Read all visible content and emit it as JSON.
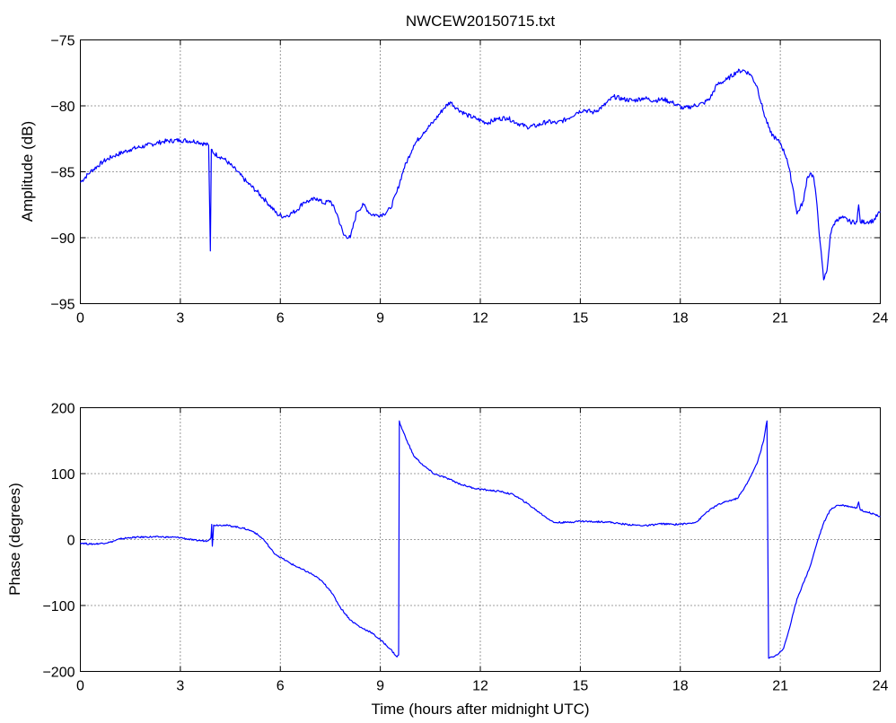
{
  "title": "NWCEW20150715.txt",
  "chart_data": [
    {
      "type": "line",
      "ylabel": "Amplitude (dB)",
      "xlabel": "",
      "xlim": [
        0,
        24
      ],
      "ylim": [
        -95,
        -75
      ],
      "xticks": [
        0,
        3,
        6,
        9,
        12,
        15,
        18,
        21,
        24
      ],
      "yticks": [
        -95,
        -90,
        -85,
        -80,
        -75
      ],
      "xtick_labels": [
        "0",
        "3",
        "6",
        "9",
        "12",
        "15",
        "18",
        "21",
        "24"
      ],
      "ytick_labels": [
        "−95",
        "−90",
        "−85",
        "−80",
        "−75"
      ],
      "grid": true,
      "color": "#0000ff",
      "series": [
        {
          "x": [
            0,
            0.3,
            0.7,
            1.0,
            1.5,
            2.0,
            2.5,
            3.0,
            3.5,
            3.85,
            3.9,
            3.93,
            3.96,
            4.0,
            4.3,
            4.6,
            5.0,
            5.3,
            5.6,
            5.9,
            6.1,
            6.3,
            6.5,
            6.7,
            6.9,
            7.1,
            7.3,
            7.5,
            7.7,
            7.9,
            8.1,
            8.3,
            8.5,
            8.7,
            8.9,
            9.1,
            9.3,
            9.5,
            9.7,
            10.0,
            10.3,
            10.6,
            10.9,
            11.1,
            11.3,
            11.6,
            11.9,
            12.2,
            12.5,
            12.8,
            13.1,
            13.4,
            13.7,
            14.0,
            14.3,
            14.6,
            14.9,
            15.1,
            15.4,
            15.7,
            16.0,
            16.3,
            16.6,
            16.9,
            17.2,
            17.5,
            17.8,
            18.1,
            18.4,
            18.7,
            18.9,
            19.1,
            19.4,
            19.7,
            19.9,
            20.1,
            20.3,
            20.5,
            20.7,
            20.9,
            21.0,
            21.2,
            21.4,
            21.5,
            21.7,
            21.8,
            21.9,
            22.0,
            22.1,
            22.2,
            22.3,
            22.4,
            22.45,
            22.5,
            22.6,
            22.7,
            22.9,
            23.1,
            23.3,
            23.35,
            23.4,
            23.6,
            23.8,
            24.0
          ],
          "y": [
            -85.8,
            -85.0,
            -84.2,
            -83.8,
            -83.3,
            -83.0,
            -82.7,
            -82.6,
            -82.7,
            -83.0,
            -91.0,
            -83.3,
            -83.4,
            -83.6,
            -84.0,
            -84.7,
            -85.8,
            -86.5,
            -87.3,
            -88.2,
            -88.4,
            -88.2,
            -87.9,
            -87.3,
            -87.2,
            -87.0,
            -87.4,
            -87.2,
            -88.2,
            -89.8,
            -90.0,
            -88.0,
            -87.5,
            -88.2,
            -88.3,
            -88.2,
            -87.8,
            -86.5,
            -84.8,
            -83.0,
            -82.0,
            -81.2,
            -80.2,
            -79.7,
            -80.2,
            -80.7,
            -81.0,
            -81.3,
            -81.0,
            -80.9,
            -81.3,
            -81.6,
            -81.5,
            -81.2,
            -81.3,
            -81.0,
            -80.5,
            -80.3,
            -80.5,
            -80.0,
            -79.3,
            -79.5,
            -79.6,
            -79.4,
            -79.6,
            -79.5,
            -79.8,
            -80.2,
            -80.0,
            -79.8,
            -79.4,
            -78.4,
            -78.0,
            -77.4,
            -77.3,
            -77.6,
            -78.5,
            -80.5,
            -82.0,
            -82.6,
            -82.8,
            -84.0,
            -86.5,
            -88.2,
            -87.2,
            -85.5,
            -85.1,
            -85.4,
            -87.5,
            -90.5,
            -93.2,
            -92.5,
            -91.2,
            -89.8,
            -89.0,
            -88.6,
            -88.5,
            -88.8,
            -88.8,
            -87.5,
            -88.8,
            -88.8,
            -88.7,
            -88.0
          ]
        }
      ]
    },
    {
      "type": "line",
      "ylabel": "Phase (degrees)",
      "xlabel": "Time (hours after midnight UTC)",
      "xlim": [
        0,
        24
      ],
      "ylim": [
        -200,
        200
      ],
      "xticks": [
        0,
        3,
        6,
        9,
        12,
        15,
        18,
        21,
        24
      ],
      "yticks": [
        -200,
        -100,
        0,
        100,
        200
      ],
      "xtick_labels": [
        "0",
        "3",
        "6",
        "9",
        "12",
        "15",
        "18",
        "21",
        "24"
      ],
      "ytick_labels": [
        "−200",
        "−100",
        "0",
        "100",
        "200"
      ],
      "grid": true,
      "color": "#0000ff",
      "series": [
        {
          "x": [
            0,
            0.3,
            0.6,
            0.9,
            1.2,
            1.5,
            2.0,
            2.5,
            3.0,
            3.4,
            3.8,
            3.92,
            3.94,
            3.96,
            4.0,
            4.3,
            4.6,
            4.9,
            5.2,
            5.5,
            5.8,
            6.0,
            6.3,
            6.6,
            6.9,
            7.2,
            7.5,
            7.8,
            8.1,
            8.4,
            8.7,
            9.0,
            9.3,
            9.5,
            9.55,
            9.57,
            9.6,
            9.8,
            10.0,
            10.3,
            10.6,
            11.0,
            11.4,
            11.8,
            12.2,
            12.6,
            13.0,
            13.4,
            13.8,
            14.2,
            14.6,
            15.0,
            15.4,
            15.8,
            16.2,
            16.6,
            17.0,
            17.4,
            17.8,
            18.2,
            18.5,
            18.8,
            19.1,
            19.4,
            19.7,
            19.9,
            20.1,
            20.3,
            20.5,
            20.6,
            20.62,
            20.65,
            20.75,
            20.9,
            21.1,
            21.3,
            21.5,
            21.7,
            21.9,
            22.1,
            22.3,
            22.5,
            22.7,
            22.9,
            23.1,
            23.3,
            23.35,
            23.4,
            23.6,
            23.8,
            24.0
          ],
          "y": [
            -5,
            -7,
            -6,
            -4,
            1,
            3,
            4,
            4,
            3,
            -1,
            -2,
            3,
            23,
            -10,
            22,
            22,
            20,
            17,
            12,
            0,
            -20,
            -27,
            -36,
            -44,
            -51,
            -61,
            -77,
            -103,
            -122,
            -133,
            -140,
            -152,
            -166,
            -178,
            -175,
            180,
            174,
            150,
            127,
            112,
            100,
            93,
            84,
            78,
            75,
            73,
            68,
            55,
            40,
            26,
            26,
            28,
            27,
            27,
            24,
            22,
            21,
            24,
            23,
            24,
            27,
            42,
            52,
            58,
            62,
            76,
            95,
            115,
            150,
            180,
            43,
            -180,
            -178,
            -175,
            -165,
            -130,
            -90,
            -65,
            -40,
            -5,
            25,
            45,
            52,
            52,
            50,
            48,
            57,
            45,
            42,
            39,
            35
          ]
        }
      ]
    }
  ]
}
